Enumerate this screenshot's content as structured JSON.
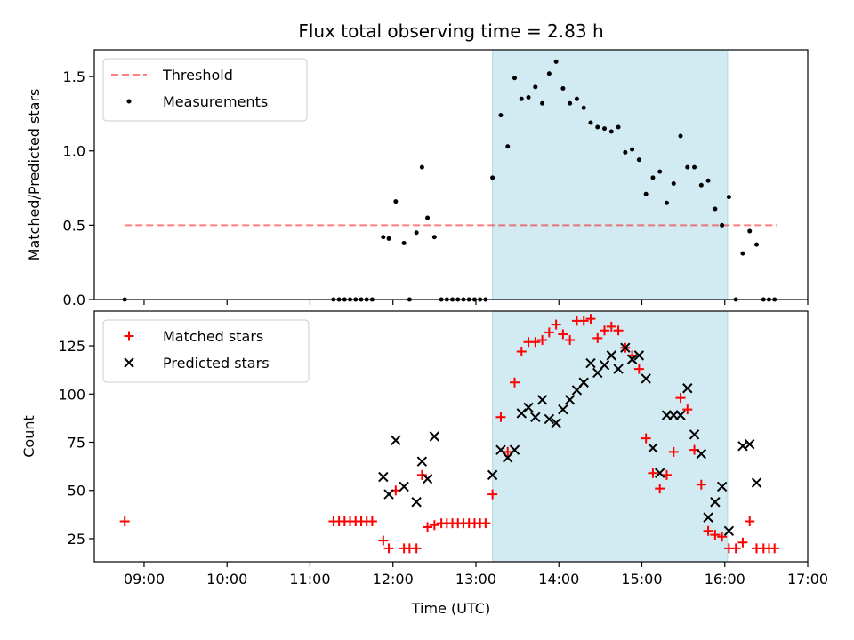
{
  "title": "Flux total observing time = 2.83 h",
  "colors": {
    "window": "#add8e6",
    "threshold": "#ff0000",
    "measurements": "#000000",
    "matched": "#ff0000",
    "predicted": "#000000"
  },
  "chart_data": [
    {
      "type": "scatter",
      "ylabel": "Matched/Predicted stars",
      "xlim": [
        "08:24",
        "17:00"
      ],
      "ylim": [
        0,
        1.68
      ],
      "yticks": [
        0.0,
        0.5,
        1.0,
        1.5
      ],
      "ytick_labels": [
        "0.0",
        "0.5",
        "1.0",
        "1.5"
      ],
      "legend_position": "upper left",
      "observing_window": [
        "13:12",
        "16:02"
      ],
      "threshold": {
        "name": "Threshold",
        "value": 0.5,
        "x_range": [
          "08:46",
          "16:38"
        ],
        "style": "dashed"
      },
      "series": [
        {
          "name": "Measurements",
          "marker": "dot",
          "points": [
            [
              "08:46",
              0
            ],
            [
              "11:17",
              0
            ],
            [
              "11:21",
              0
            ],
            [
              "11:25",
              0
            ],
            [
              "11:29",
              0
            ],
            [
              "11:33",
              0
            ],
            [
              "11:37",
              0
            ],
            [
              "11:41",
              0
            ],
            [
              "11:45",
              0
            ],
            [
              "11:53",
              0.42
            ],
            [
              "11:57",
              0.41
            ],
            [
              "12:02",
              0.66
            ],
            [
              "12:08",
              0.38
            ],
            [
              "12:12",
              0
            ],
            [
              "12:17",
              0.45
            ],
            [
              "12:21",
              0.89
            ],
            [
              "12:25",
              0.55
            ],
            [
              "12:30",
              0.42
            ],
            [
              "12:35",
              0
            ],
            [
              "12:39",
              0
            ],
            [
              "12:43",
              0
            ],
            [
              "12:47",
              0
            ],
            [
              "12:51",
              0
            ],
            [
              "12:55",
              0
            ],
            [
              "12:59",
              0
            ],
            [
              "13:03",
              0
            ],
            [
              "13:07",
              0
            ],
            [
              "13:12",
              0.82
            ],
            [
              "13:18",
              1.24
            ],
            [
              "13:23",
              1.03
            ],
            [
              "13:28",
              1.49
            ],
            [
              "13:33",
              1.35
            ],
            [
              "13:38",
              1.36
            ],
            [
              "13:43",
              1.43
            ],
            [
              "13:48",
              1.32
            ],
            [
              "13:53",
              1.52
            ],
            [
              "13:58",
              1.6
            ],
            [
              "14:03",
              1.42
            ],
            [
              "14:08",
              1.32
            ],
            [
              "14:13",
              1.35
            ],
            [
              "14:18",
              1.29
            ],
            [
              "14:23",
              1.19
            ],
            [
              "14:28",
              1.16
            ],
            [
              "14:33",
              1.15
            ],
            [
              "14:38",
              1.13
            ],
            [
              "14:43",
              1.16
            ],
            [
              "14:48",
              0.99
            ],
            [
              "14:53",
              1.01
            ],
            [
              "14:58",
              0.94
            ],
            [
              "15:03",
              0.71
            ],
            [
              "15:08",
              0.82
            ],
            [
              "15:13",
              0.86
            ],
            [
              "15:18",
              0.65
            ],
            [
              "15:23",
              0.78
            ],
            [
              "15:28",
              1.1
            ],
            [
              "15:33",
              0.89
            ],
            [
              "15:38",
              0.89
            ],
            [
              "15:43",
              0.77
            ],
            [
              "15:48",
              0.8
            ],
            [
              "15:53",
              0.61
            ],
            [
              "15:58",
              0.5
            ],
            [
              "16:03",
              0.69
            ],
            [
              "16:08",
              0
            ],
            [
              "16:13",
              0.31
            ],
            [
              "16:18",
              0.46
            ],
            [
              "16:23",
              0.37
            ],
            [
              "16:28",
              0
            ],
            [
              "16:32",
              0
            ],
            [
              "16:36",
              0
            ]
          ]
        }
      ]
    },
    {
      "type": "scatter",
      "xlabel": "Time (UTC)",
      "ylabel": "Count",
      "xlim": [
        "08:24",
        "17:00"
      ],
      "ylim": [
        13,
        143
      ],
      "xticks": [
        "09:00",
        "10:00",
        "11:00",
        "12:00",
        "13:00",
        "14:00",
        "15:00",
        "16:00",
        "17:00"
      ],
      "yticks": [
        25,
        50,
        75,
        100,
        125
      ],
      "ytick_labels": [
        "25",
        "50",
        "75",
        "100",
        "125"
      ],
      "legend_position": "upper left",
      "observing_window": [
        "13:12",
        "16:02"
      ],
      "series": [
        {
          "name": "Matched stars",
          "marker": "plus",
          "points": [
            [
              "08:46",
              34
            ],
            [
              "11:17",
              34
            ],
            [
              "11:21",
              34
            ],
            [
              "11:25",
              34
            ],
            [
              "11:29",
              34
            ],
            [
              "11:33",
              34
            ],
            [
              "11:37",
              34
            ],
            [
              "11:41",
              34
            ],
            [
              "11:45",
              34
            ],
            [
              "11:53",
              24
            ],
            [
              "11:57",
              20
            ],
            [
              "12:02",
              50
            ],
            [
              "12:08",
              20
            ],
            [
              "12:12",
              20
            ],
            [
              "12:17",
              20
            ],
            [
              "12:21",
              58
            ],
            [
              "12:25",
              31
            ],
            [
              "12:30",
              32
            ],
            [
              "12:35",
              33
            ],
            [
              "12:39",
              33
            ],
            [
              "12:43",
              33
            ],
            [
              "12:47",
              33
            ],
            [
              "12:51",
              33
            ],
            [
              "12:55",
              33
            ],
            [
              "12:59",
              33
            ],
            [
              "13:03",
              33
            ],
            [
              "13:07",
              33
            ],
            [
              "13:12",
              48
            ],
            [
              "13:18",
              88
            ],
            [
              "13:23",
              70
            ],
            [
              "13:28",
              106
            ],
            [
              "13:33",
              122
            ],
            [
              "13:38",
              127
            ],
            [
              "13:43",
              127
            ],
            [
              "13:48",
              128
            ],
            [
              "13:53",
              132
            ],
            [
              "13:58",
              136
            ],
            [
              "14:03",
              131
            ],
            [
              "14:08",
              128
            ],
            [
              "14:13",
              138
            ],
            [
              "14:18",
              138
            ],
            [
              "14:23",
              139
            ],
            [
              "14:28",
              129
            ],
            [
              "14:33",
              133
            ],
            [
              "14:38",
              135
            ],
            [
              "14:43",
              133
            ],
            [
              "14:48",
              124
            ],
            [
              "14:53",
              120
            ],
            [
              "14:58",
              113
            ],
            [
              "15:03",
              77
            ],
            [
              "15:08",
              59
            ],
            [
              "15:13",
              51
            ],
            [
              "15:18",
              58
            ],
            [
              "15:23",
              70
            ],
            [
              "15:28",
              98
            ],
            [
              "15:33",
              92
            ],
            [
              "15:38",
              71
            ],
            [
              "15:43",
              53
            ],
            [
              "15:48",
              29
            ],
            [
              "15:53",
              27
            ],
            [
              "15:58",
              26
            ],
            [
              "16:03",
              20
            ],
            [
              "16:08",
              20
            ],
            [
              "16:13",
              23
            ],
            [
              "16:18",
              34
            ],
            [
              "16:23",
              20
            ],
            [
              "16:28",
              20
            ],
            [
              "16:32",
              20
            ],
            [
              "16:36",
              20
            ]
          ]
        },
        {
          "name": "Predicted stars",
          "marker": "cross",
          "points": [
            [
              "11:53",
              57
            ],
            [
              "11:57",
              48
            ],
            [
              "12:02",
              76
            ],
            [
              "12:08",
              52
            ],
            [
              "12:17",
              44
            ],
            [
              "12:21",
              65
            ],
            [
              "12:25",
              56
            ],
            [
              "12:30",
              78
            ],
            [
              "13:12",
              58
            ],
            [
              "13:18",
              71
            ],
            [
              "13:23",
              67
            ],
            [
              "13:28",
              71
            ],
            [
              "13:33",
              90
            ],
            [
              "13:38",
              93
            ],
            [
              "13:43",
              88
            ],
            [
              "13:48",
              97
            ],
            [
              "13:53",
              87
            ],
            [
              "13:58",
              85
            ],
            [
              "14:03",
              92
            ],
            [
              "14:08",
              97
            ],
            [
              "14:13",
              102
            ],
            [
              "14:18",
              106
            ],
            [
              "14:23",
              116
            ],
            [
              "14:28",
              111
            ],
            [
              "14:33",
              115
            ],
            [
              "14:38",
              120
            ],
            [
              "14:43",
              113
            ],
            [
              "14:48",
              124
            ],
            [
              "14:53",
              118
            ],
            [
              "14:58",
              120
            ],
            [
              "15:03",
              108
            ],
            [
              "15:08",
              72
            ],
            [
              "15:13",
              59
            ],
            [
              "15:18",
              89
            ],
            [
              "15:23",
              89
            ],
            [
              "15:28",
              89
            ],
            [
              "15:33",
              103
            ],
            [
              "15:38",
              79
            ],
            [
              "15:43",
              69
            ],
            [
              "15:48",
              36
            ],
            [
              "15:53",
              44
            ],
            [
              "15:58",
              52
            ],
            [
              "16:03",
              29
            ],
            [
              "16:13",
              73
            ],
            [
              "16:18",
              74
            ],
            [
              "16:23",
              54
            ]
          ]
        }
      ]
    }
  ]
}
